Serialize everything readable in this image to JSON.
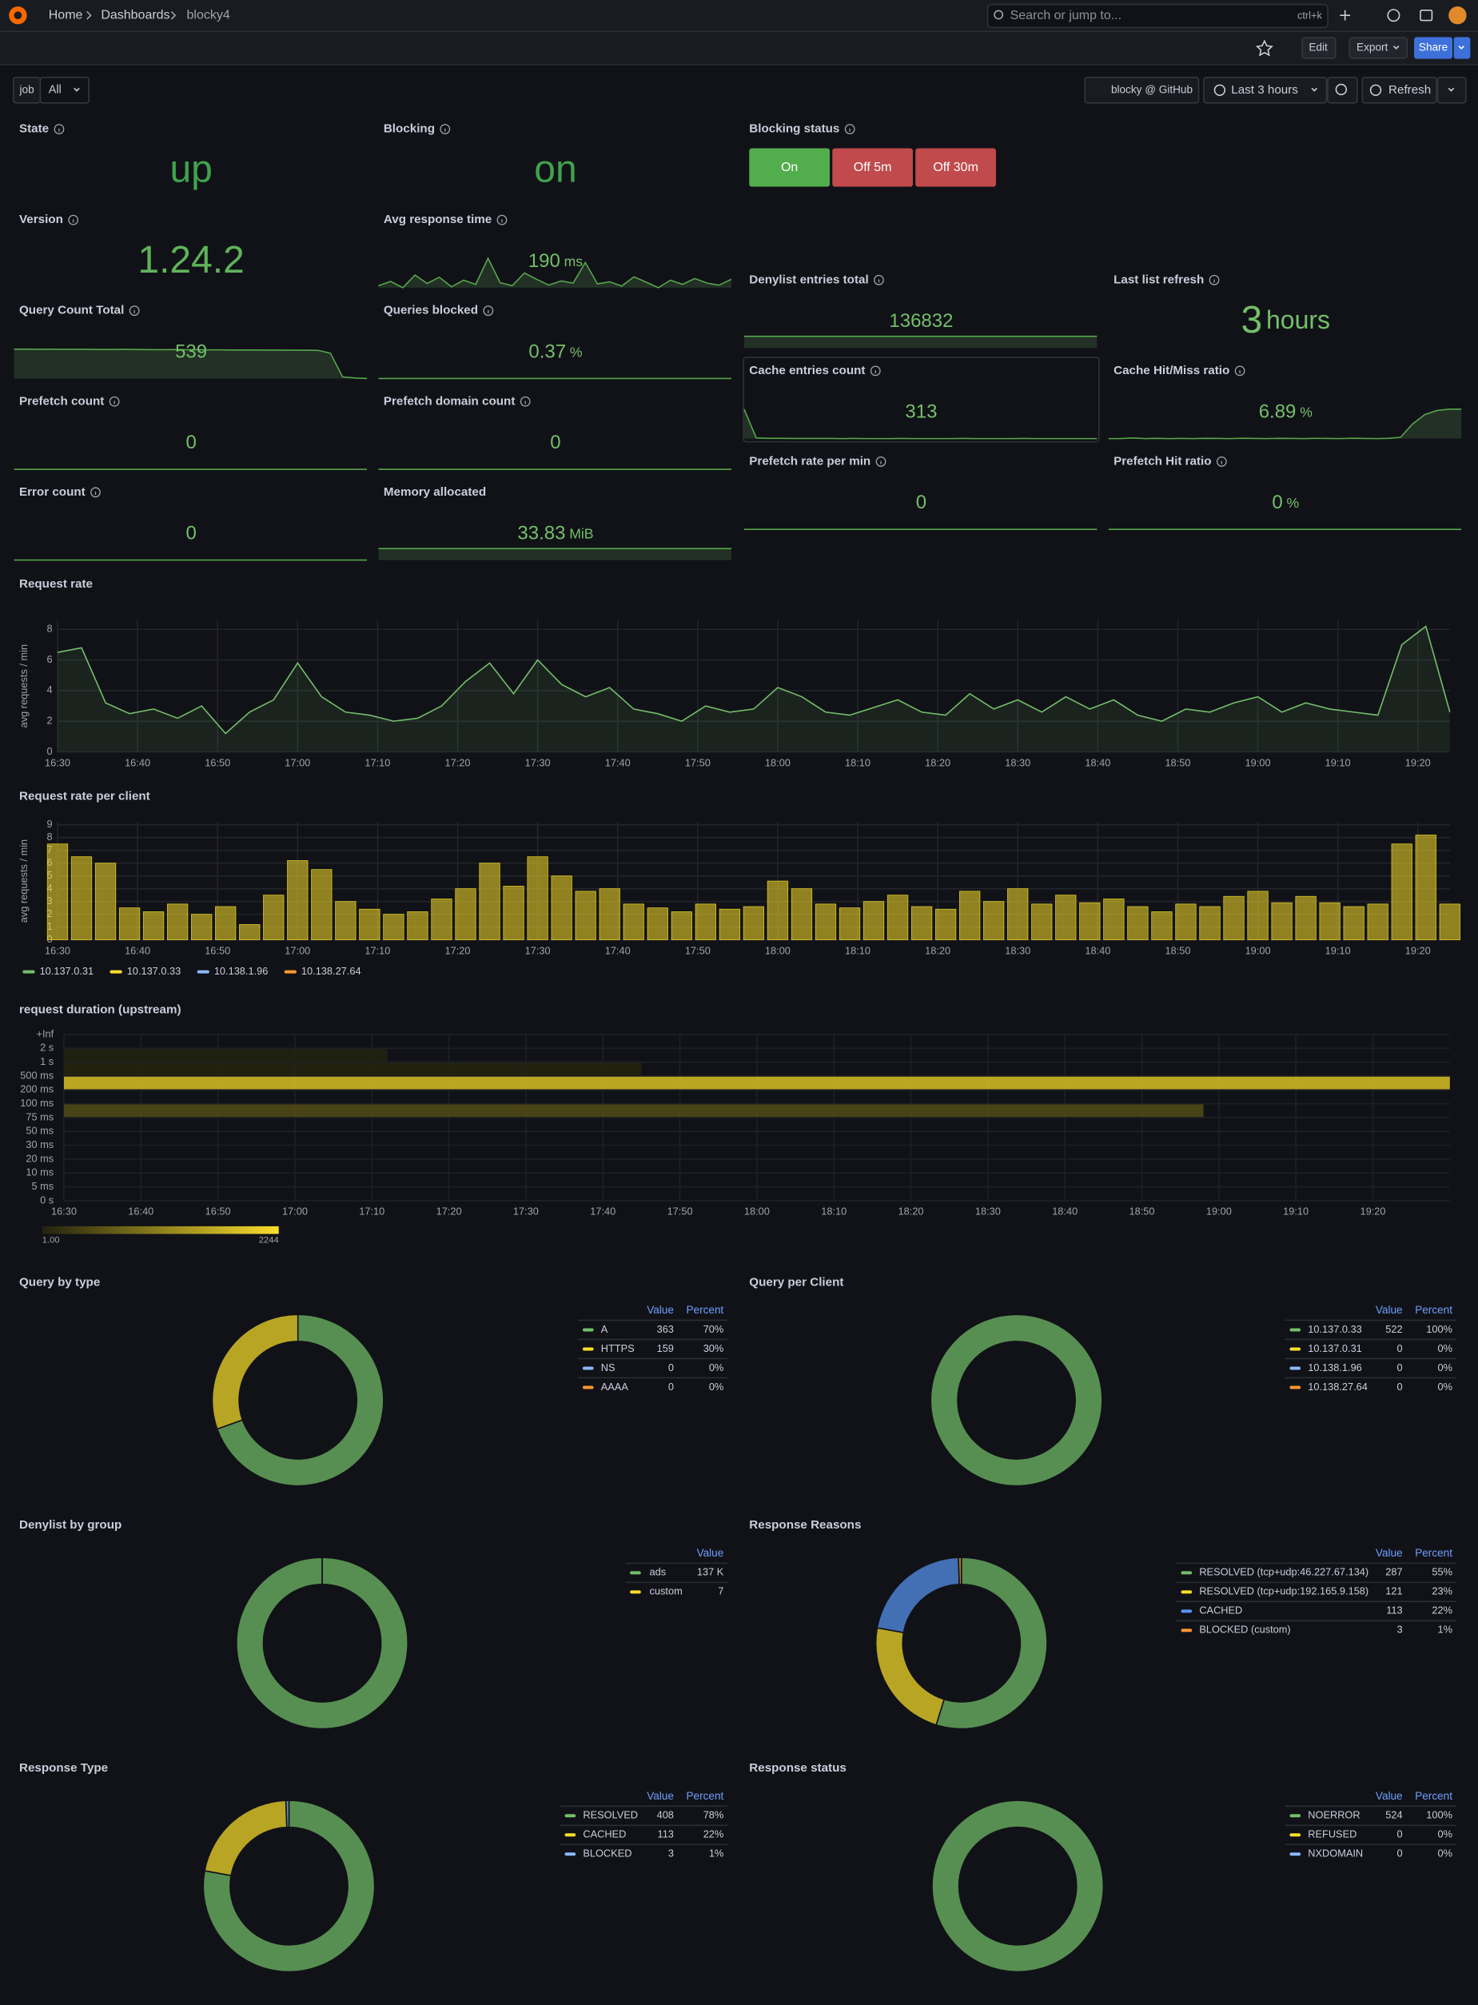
{
  "nav": {
    "breadcrumbs": [
      "Home",
      "Dashboards",
      "blocky4"
    ],
    "search": "Search or jump to...",
    "shortcut": "ctrl+k"
  },
  "toolbar": {
    "edit": "Edit",
    "export": "Export",
    "share": "Share"
  },
  "variable": {
    "label": "job",
    "value": "All"
  },
  "controls": {
    "link": "blocky @ GitHub",
    "time_range": "Last 3 hours",
    "refresh": "Refresh"
  },
  "stats": [
    {
      "title": "State",
      "info": true,
      "value": "up",
      "size": "large",
      "color": "#3fa34d"
    },
    {
      "title": "Blocking",
      "info": true,
      "value": "on",
      "size": "large",
      "color": "#3fa34d"
    },
    {
      "title": "Version",
      "info": true,
      "value": "1.24.2",
      "size": "large",
      "color": "#5fb35a"
    },
    {
      "title": "Avg response time",
      "info": true,
      "value": 190,
      "unit": "ms",
      "color": "#73bf69",
      "spark": [
        175,
        185,
        170,
        200,
        180,
        195,
        172,
        188,
        178,
        240,
        182,
        175,
        205,
        190,
        176,
        186,
        181,
        230,
        179,
        184,
        174,
        196,
        183,
        170,
        188,
        178,
        192,
        181,
        176,
        190
      ]
    },
    {
      "title": "Query Count Total",
      "info": true,
      "value": 539,
      "color": "#73bf69",
      "spark": [
        600,
        602,
        598,
        600,
        597,
        596,
        598,
        595,
        594,
        596,
        593,
        592,
        590,
        591,
        589,
        588,
        587,
        586,
        585,
        584,
        583,
        582,
        581,
        580,
        578,
        575,
        520,
        40,
        20,
        10
      ]
    },
    {
      "title": "Queries blocked",
      "info": true,
      "value": 0.37,
      "unit": "%",
      "color": "#73bf69",
      "spark": [
        0,
        0
      ]
    },
    {
      "title": "Prefetch count",
      "info": true,
      "value": 0,
      "color": "#73bf69",
      "spark": [
        0,
        0
      ]
    },
    {
      "title": "Prefetch domain count",
      "info": true,
      "value": 0,
      "color": "#73bf69",
      "spark": [
        0,
        0
      ]
    },
    {
      "title": "Error count",
      "info": true,
      "value": 0,
      "color": "#73bf69",
      "spark": [
        0,
        0
      ]
    },
    {
      "title": "Memory allocated",
      "info": false,
      "value": 33.83,
      "unit": "MiB",
      "color": "#73bf69",
      "spark": [
        33.83,
        33.83
      ]
    },
    {
      "title": "Denylist entries total",
      "info": true,
      "value": 136832,
      "color": "#73bf69",
      "spark": [
        136832,
        136832
      ]
    },
    {
      "title": "Last list refresh",
      "info": true,
      "value": 3,
      "unit": "hours",
      "size": "large",
      "color": "#73bf69"
    },
    {
      "title": "Cache entries count",
      "info": true,
      "value": 313,
      "color": "#73bf69",
      "spark": [
        1200,
        330,
        320,
        318,
        316,
        315,
        314,
        315,
        313,
        314,
        313,
        312,
        313,
        314,
        313,
        312,
        313,
        313,
        314,
        313,
        312,
        313,
        313,
        314,
        313,
        313,
        312,
        313,
        313,
        313
      ]
    },
    {
      "title": "Cache Hit/Miss ratio",
      "info": true,
      "value": 6.89,
      "unit": "%",
      "color": "#73bf69",
      "spark": [
        0.4,
        0.4,
        0.45,
        0.4,
        0.42,
        0.4,
        0.41,
        0.4,
        0.42,
        0.41,
        0.4,
        0.43,
        0.41,
        0.4,
        0.42,
        0.41,
        0.4,
        0.42,
        0.41,
        0.4,
        0.43,
        0.41,
        0.4,
        0.42,
        0.5,
        1.5,
        2.2,
        2.5,
        2.6,
        2.6
      ]
    },
    {
      "title": "Prefetch rate per min",
      "info": true,
      "value": 0,
      "color": "#73bf69",
      "spark": [
        0,
        0
      ]
    },
    {
      "title": "Prefetch Hit ratio",
      "info": true,
      "value": 0,
      "unit": "%",
      "color": "#73bf69",
      "spark": [
        0,
        0
      ]
    }
  ],
  "blocking_status": {
    "title": "Blocking status",
    "info": true,
    "buttons": [
      {
        "label": "On",
        "color": "#52ad4d"
      },
      {
        "label": "Off 5m",
        "color": "#c14a4c"
      },
      {
        "label": "Off 30m",
        "color": "#c14a4c"
      }
    ]
  },
  "request_rate": {
    "type": "line",
    "title": "Request rate",
    "y_label": "avg requests / min",
    "xlim": [
      "16:30",
      "19:24"
    ],
    "ylim": [
      0,
      8.6
    ],
    "yticks": [
      0,
      2,
      4,
      6,
      8
    ],
    "xticks": [
      "16:30",
      "16:40",
      "16:50",
      "17:00",
      "17:10",
      "17:20",
      "17:30",
      "17:40",
      "17:50",
      "18:00",
      "18:10",
      "18:20",
      "18:30",
      "18:40",
      "18:50",
      "19:00",
      "19:10",
      "19:20"
    ],
    "x": [
      "16:30",
      "16:33",
      "16:36",
      "16:39",
      "16:42",
      "16:45",
      "16:48",
      "16:51",
      "16:54",
      "16:57",
      "17:00",
      "17:03",
      "17:06",
      "17:09",
      "17:12",
      "17:15",
      "17:18",
      "17:21",
      "17:24",
      "17:27",
      "17:30",
      "17:33",
      "17:36",
      "17:39",
      "17:42",
      "17:45",
      "17:48",
      "17:51",
      "17:54",
      "17:57",
      "18:00",
      "18:03",
      "18:06",
      "18:09",
      "18:12",
      "18:15",
      "18:18",
      "18:21",
      "18:24",
      "18:27",
      "18:30",
      "18:33",
      "18:36",
      "18:39",
      "18:42",
      "18:45",
      "18:48",
      "18:51",
      "18:54",
      "18:57",
      "19:00",
      "19:03",
      "19:06",
      "19:09",
      "19:12",
      "19:15",
      "19:18",
      "19:21",
      "19:24"
    ],
    "series": [
      {
        "color": "#73bf69",
        "values": [
          6.5,
          6.8,
          3.2,
          2.5,
          2.8,
          2.2,
          3.0,
          1.2,
          2.6,
          3.4,
          5.8,
          3.6,
          2.6,
          2.4,
          2.0,
          2.2,
          3.0,
          4.6,
          5.8,
          3.8,
          6.0,
          4.4,
          3.6,
          4.2,
          2.8,
          2.5,
          2.0,
          3.0,
          2.6,
          2.8,
          4.2,
          3.6,
          2.6,
          2.4,
          2.9,
          3.4,
          2.6,
          2.4,
          3.8,
          2.8,
          3.4,
          2.6,
          3.6,
          2.8,
          3.4,
          2.4,
          2.0,
          2.8,
          2.6,
          3.2,
          3.6,
          2.6,
          3.2,
          2.8,
          2.6,
          2.4,
          7.0,
          8.2,
          2.6
        ]
      }
    ]
  },
  "request_rate_per_client": {
    "type": "bar",
    "title": "Request rate per client",
    "y_label": "avg requests / min",
    "xlim": [
      "16:30",
      "19:24"
    ],
    "ylim": [
      0,
      9.2
    ],
    "yticks": [
      0,
      1,
      2,
      3,
      4,
      5,
      6,
      7,
      8,
      9
    ],
    "xticks": [
      "16:30",
      "16:40",
      "16:50",
      "17:00",
      "17:10",
      "17:20",
      "17:30",
      "17:40",
      "17:50",
      "18:00",
      "18:10",
      "18:20",
      "18:30",
      "18:40",
      "18:50",
      "19:00",
      "19:10",
      "19:20"
    ],
    "x": [
      "16:30",
      "16:33",
      "16:36",
      "16:39",
      "16:42",
      "16:45",
      "16:48",
      "16:51",
      "16:54",
      "16:57",
      "17:00",
      "17:03",
      "17:06",
      "17:09",
      "17:12",
      "17:15",
      "17:18",
      "17:21",
      "17:24",
      "17:27",
      "17:30",
      "17:33",
      "17:36",
      "17:39",
      "17:42",
      "17:45",
      "17:48",
      "17:51",
      "17:54",
      "17:57",
      "18:00",
      "18:03",
      "18:06",
      "18:09",
      "18:12",
      "18:15",
      "18:18",
      "18:21",
      "18:24",
      "18:27",
      "18:30",
      "18:33",
      "18:36",
      "18:39",
      "18:42",
      "18:45",
      "18:48",
      "18:51",
      "18:54",
      "18:57",
      "19:00",
      "19:03",
      "19:06",
      "19:09",
      "19:12",
      "19:15",
      "19:18",
      "19:21",
      "19:24"
    ],
    "series": [
      {
        "name": "10.137.0.31",
        "color": "#73bf69"
      },
      {
        "name": "10.137.0.33",
        "color": "#fade2a",
        "values": [
          7.5,
          6.5,
          6.0,
          2.5,
          2.2,
          2.8,
          2.0,
          2.6,
          1.2,
          3.5,
          6.2,
          5.5,
          3.0,
          2.4,
          2.0,
          2.2,
          3.2,
          4.0,
          6.0,
          4.2,
          6.5,
          5.0,
          3.8,
          4.0,
          2.8,
          2.5,
          2.2,
          2.8,
          2.4,
          2.6,
          4.6,
          4.0,
          2.8,
          2.5,
          3.0,
          3.5,
          2.6,
          2.4,
          3.8,
          3.0,
          4.0,
          2.8,
          3.5,
          2.9,
          3.2,
          2.6,
          2.2,
          2.8,
          2.6,
          3.4,
          3.8,
          2.9,
          3.4,
          2.9,
          2.6,
          2.8,
          7.5,
          8.2,
          2.8
        ]
      },
      {
        "name": "10.138.1.96",
        "color": "#8ab8ff"
      },
      {
        "name": "10.138.27.64",
        "color": "#ff9830"
      }
    ]
  },
  "heatmap": {
    "type": "heatmap",
    "title": "request duration (upstream)",
    "xlim": [
      "16:30",
      "19:30"
    ],
    "xticks": [
      "16:30",
      "16:40",
      "16:50",
      "17:00",
      "17:10",
      "17:20",
      "17:30",
      "17:40",
      "17:50",
      "18:00",
      "18:10",
      "18:20",
      "18:30",
      "18:40",
      "18:50",
      "19:00",
      "19:10",
      "19:20"
    ],
    "buckets": [
      "+Inf",
      "2 s",
      "1 s",
      "500 ms",
      "200 ms",
      "100 ms",
      "75 ms",
      "50 ms",
      "30 ms",
      "20 ms",
      "10 ms",
      "5 ms",
      "0 s"
    ],
    "cells": [
      {
        "row": 1,
        "from": "16:30",
        "to": "17:12",
        "value": 15
      },
      {
        "row": 2,
        "from": "16:30",
        "to": "17:45",
        "value": 40
      },
      {
        "row": 3,
        "from": "16:30",
        "to": "19:30",
        "value": 1900
      },
      {
        "row": 5,
        "from": "16:30",
        "to": "18:58",
        "value": 500
      }
    ],
    "scale": [
      {
        "value": 1,
        "label": "1.00"
      },
      2244
    ],
    "scale_colors": [
      "#22220f",
      "#fade2a"
    ]
  },
  "pies": [
    {
      "type": "pie",
      "title": "Query by type",
      "columns": [
        "Value",
        "Percent"
      ],
      "labels": [
        "A",
        "HTTPS",
        "NS",
        "AAAA"
      ],
      "values": [
        363,
        159,
        0,
        0
      ],
      "percent_labels": [
        "70%",
        "30%",
        "0%",
        "0%"
      ],
      "colors": [
        "#73bf69",
        "#fade2a",
        "#8ab8ff",
        "#ff9830"
      ]
    },
    {
      "type": "pie",
      "title": "Query per Client",
      "columns": [
        "Value",
        "Percent"
      ],
      "labels": [
        "10.137.0.33",
        "10.137.0.31",
        "10.138.1.96",
        "10.138.27.64"
      ],
      "values": [
        522,
        0,
        0,
        0
      ],
      "percent_labels": [
        "100%",
        "0%",
        "0%",
        "0%"
      ],
      "colors": [
        "#73bf69",
        "#fade2a",
        "#8ab8ff",
        "#ff9830"
      ]
    },
    {
      "type": "pie",
      "title": "Denylist by group",
      "columns": [
        "Value"
      ],
      "labels": [
        "ads",
        "custom"
      ],
      "values": [
        136832,
        7
      ],
      "value_labels": [
        "137 K",
        "7"
      ],
      "colors": [
        "#73bf69",
        "#fade2a"
      ]
    },
    {
      "type": "pie",
      "title": "Response Reasons",
      "columns": [
        "Value",
        "Percent"
      ],
      "labels": [
        "RESOLVED (tcp+udp:46.227.67.134)",
        "RESOLVED (tcp+udp:192.165.9.158)",
        "CACHED",
        "BLOCKED (custom)"
      ],
      "values": [
        287,
        121,
        113,
        3
      ],
      "percent_labels": [
        "55%",
        "23%",
        "22%",
        "1%"
      ],
      "colors": [
        "#73bf69",
        "#fade2a",
        "#5794f2",
        "#ff9830"
      ]
    },
    {
      "type": "pie",
      "title": "Response Type",
      "columns": [
        "Value",
        "Percent"
      ],
      "labels": [
        "RESOLVED",
        "CACHED",
        "BLOCKED"
      ],
      "values": [
        408,
        113,
        3
      ],
      "percent_labels": [
        "78%",
        "22%",
        "1%"
      ],
      "colors": [
        "#73bf69",
        "#fade2a",
        "#8ab8ff"
      ]
    },
    {
      "type": "pie",
      "title": "Response status",
      "columns": [
        "Value",
        "Percent"
      ],
      "labels": [
        "NOERROR",
        "REFUSED",
        "NXDOMAIN"
      ],
      "values": [
        524,
        0,
        0
      ],
      "percent_labels": [
        "100%",
        "0%",
        "0%"
      ],
      "colors": [
        "#73bf69",
        "#fade2a",
        "#8ab8ff"
      ]
    }
  ]
}
